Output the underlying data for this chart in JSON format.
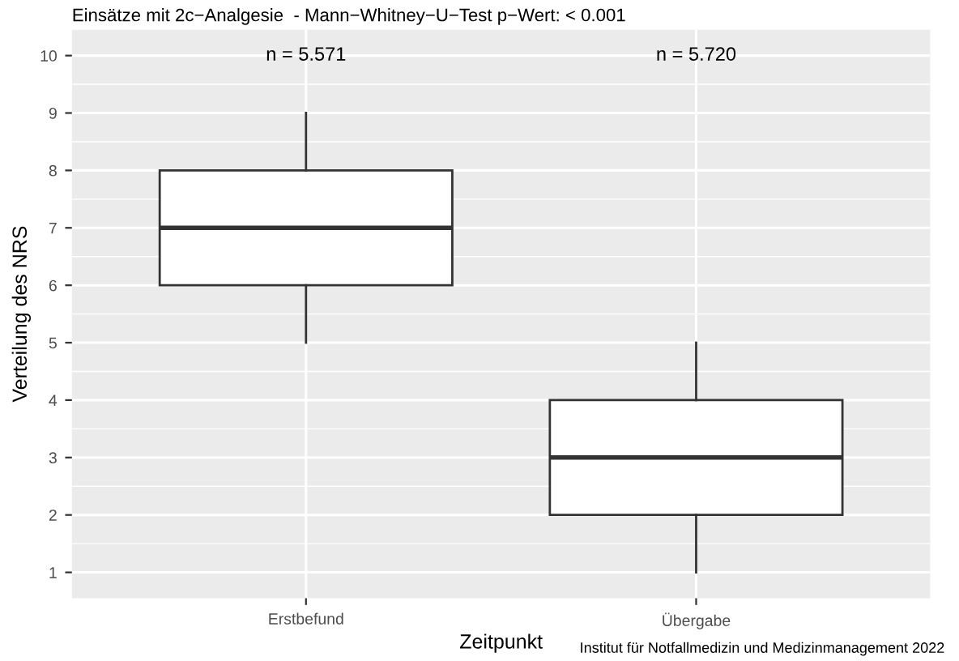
{
  "chart_data": {
    "type": "box",
    "title": "Einsätze mit 2c−Analgesie  - Mann−Whitney−U−Test p−Wert: < 0.001",
    "xlabel": "Zeitpunkt",
    "ylabel": "Verteilung des NRS",
    "categories": [
      "Erstbefund",
      "Übergabe"
    ],
    "boxes": [
      {
        "low": 5,
        "q1": 6,
        "median": 7,
        "q3": 8,
        "high": 9
      },
      {
        "low": 1,
        "q1": 2,
        "median": 3,
        "q3": 4,
        "high": 5
      }
    ],
    "ylim": [
      0.55,
      10.45
    ],
    "yticks": [
      1,
      2,
      3,
      4,
      5,
      6,
      7,
      8,
      9,
      10
    ],
    "grid": true,
    "annotations": [
      "n = 5.571",
      "n = 5.720",
      "Institut für Notfallmedizin und Medizinmanagement 2022"
    ]
  }
}
